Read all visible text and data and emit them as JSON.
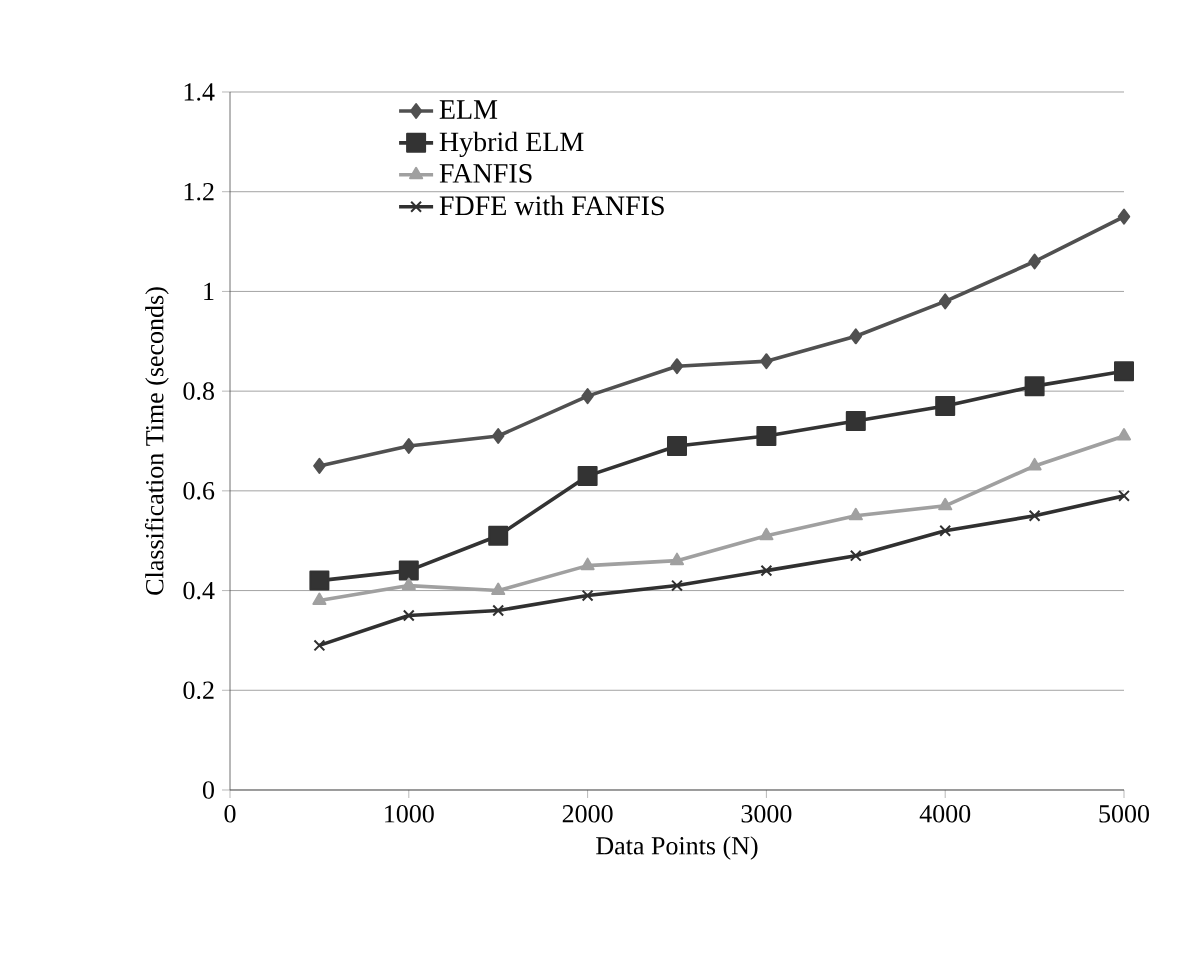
{
  "chart_data": {
    "type": "line",
    "xlabel": "Data Points (N)",
    "ylabel": "Classification Time (seconds)",
    "xlim": [
      0,
      5000
    ],
    "xticks": [
      0,
      1000,
      2000,
      3000,
      4000,
      5000
    ],
    "ylim": [
      0,
      1.4
    ],
    "yticks": [
      0,
      0.2,
      0.4,
      0.6,
      0.8,
      1,
      1.2,
      1.4
    ],
    "grid": "y",
    "legend": "top left",
    "line_style": "solid",
    "x": [
      500,
      1000,
      1500,
      2000,
      2500,
      3000,
      3500,
      4000,
      4500,
      5000
    ],
    "series": [
      {
        "name": "ELM",
        "color": "#505050",
        "marker": "diamond",
        "values": [
          0.65,
          0.69,
          0.71,
          0.79,
          0.85,
          0.86,
          0.91,
          0.98,
          1.06,
          1.15
        ]
      },
      {
        "name": "Hybrid ELM",
        "color": "#333333",
        "marker": "square",
        "values": [
          0.42,
          0.44,
          0.51,
          0.63,
          0.69,
          0.71,
          0.74,
          0.77,
          0.81,
          0.84
        ]
      },
      {
        "name": "FANFIS",
        "color": "#a0a0a0",
        "marker": "triangle",
        "values": [
          0.38,
          0.41,
          0.4,
          0.45,
          0.46,
          0.51,
          0.55,
          0.57,
          0.65,
          0.71
        ]
      },
      {
        "name": "FDFE with FANFIS",
        "color": "#303030",
        "marker": "cross",
        "values": [
          0.29,
          0.35,
          0.36,
          0.39,
          0.41,
          0.44,
          0.47,
          0.52,
          0.55,
          0.59
        ]
      }
    ]
  }
}
